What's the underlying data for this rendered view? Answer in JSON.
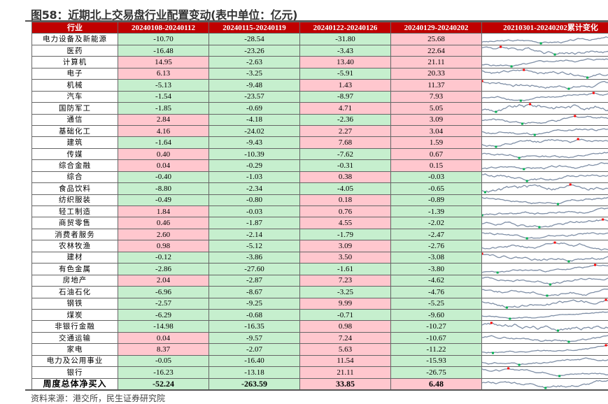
{
  "title": "图58：近期北上交易盘行业配置变动(表中单位：亿元)",
  "colors": {
    "header_bg": "#c00000",
    "positive_bg": "#ffc7ce",
    "negative_bg": "#c6efce",
    "sparkline": "#7f8fa6",
    "spark_max": "#ff0000",
    "spark_min": "#00b050"
  },
  "columns": [
    "行业",
    "20240108-20240112",
    "20240115-20240119",
    "20240122-20240126",
    "20240129-20240202",
    "20210301-20240202累计变化"
  ],
  "rows": [
    {
      "name": "电力设备及新能源",
      "values": [
        "-10.70",
        "-28.54",
        "-31.80",
        "25.68"
      ]
    },
    {
      "name": "医药",
      "values": [
        "-16.48",
        "-23.26",
        "-3.43",
        "22.64"
      ]
    },
    {
      "name": "计算机",
      "values": [
        "14.95",
        "-2.63",
        "13.40",
        "21.11"
      ]
    },
    {
      "name": "电子",
      "values": [
        "6.13",
        "-3.25",
        "-5.91",
        "20.33"
      ]
    },
    {
      "name": "机械",
      "values": [
        "-5.13",
        "-9.48",
        "1.43",
        "11.37"
      ]
    },
    {
      "name": "汽车",
      "values": [
        "-1.54",
        "-23.57",
        "-8.97",
        "7.93"
      ]
    },
    {
      "name": "国防军工",
      "values": [
        "-1.85",
        "-0.69",
        "4.71",
        "5.05"
      ]
    },
    {
      "name": "通信",
      "values": [
        "2.84",
        "-4.18",
        "-2.36",
        "3.09"
      ]
    },
    {
      "name": "基础化工",
      "values": [
        "4.16",
        "-24.02",
        "2.27",
        "3.04"
      ]
    },
    {
      "name": "建筑",
      "values": [
        "-1.64",
        "-9.43",
        "7.68",
        "1.59"
      ]
    },
    {
      "name": "传媒",
      "values": [
        "0.40",
        "-10.39",
        "-7.62",
        "0.67"
      ]
    },
    {
      "name": "综合金融",
      "values": [
        "0.04",
        "-0.29",
        "-0.31",
        "0.15"
      ]
    },
    {
      "name": "综合",
      "values": [
        "-0.40",
        "-1.03",
        "0.38",
        "-0.03"
      ]
    },
    {
      "name": "食品饮料",
      "values": [
        "-8.80",
        "-2.34",
        "-4.05",
        "-0.65"
      ]
    },
    {
      "name": "纺织服装",
      "values": [
        "-0.49",
        "-0.80",
        "0.18",
        "-0.89"
      ]
    },
    {
      "name": "轻工制造",
      "values": [
        "1.84",
        "-0.03",
        "0.76",
        "-1.39"
      ]
    },
    {
      "name": "商贸零售",
      "values": [
        "0.46",
        "-1.87",
        "4.55",
        "-2.02"
      ]
    },
    {
      "name": "消费者服务",
      "values": [
        "2.60",
        "-2.14",
        "-1.79",
        "-2.47"
      ]
    },
    {
      "name": "农林牧渔",
      "values": [
        "0.98",
        "-5.12",
        "3.09",
        "-2.76"
      ]
    },
    {
      "name": "建材",
      "values": [
        "-0.12",
        "-3.86",
        "3.50",
        "-3.08"
      ]
    },
    {
      "name": "有色金属",
      "values": [
        "-2.86",
        "-27.60",
        "-1.61",
        "-3.80"
      ]
    },
    {
      "name": "房地产",
      "values": [
        "2.04",
        "-2.87",
        "7.23",
        "-4.62"
      ]
    },
    {
      "name": "石油石化",
      "values": [
        "-6.96",
        "-8.67",
        "-3.25",
        "-4.76"
      ]
    },
    {
      "name": "钢铁",
      "values": [
        "-2.57",
        "-9.25",
        "9.99",
        "-5.25"
      ]
    },
    {
      "name": "煤炭",
      "values": [
        "-6.29",
        "-0.68",
        "-0.71",
        "-9.60"
      ]
    },
    {
      "name": "非银行金融",
      "values": [
        "-14.98",
        "-16.35",
        "0.98",
        "-10.27"
      ]
    },
    {
      "name": "交通运输",
      "values": [
        "0.04",
        "-9.57",
        "7.24",
        "-10.67"
      ]
    },
    {
      "name": "家电",
      "values": [
        "8.37",
        "-2.07",
        "5.63",
        "-11.22"
      ]
    },
    {
      "name": "电力及公用事业",
      "values": [
        "-0.05",
        "-16.40",
        "11.54",
        "-15.93"
      ]
    },
    {
      "name": "银行",
      "values": [
        "-16.23",
        "-13.18",
        "21.11",
        "-26.75"
      ]
    }
  ],
  "total": {
    "name": "周度总体净买入",
    "values": [
      "-52.24",
      "-263.59",
      "33.85",
      "6.48"
    ]
  },
  "source": "资料来源：港交所，民生证券研究院"
}
